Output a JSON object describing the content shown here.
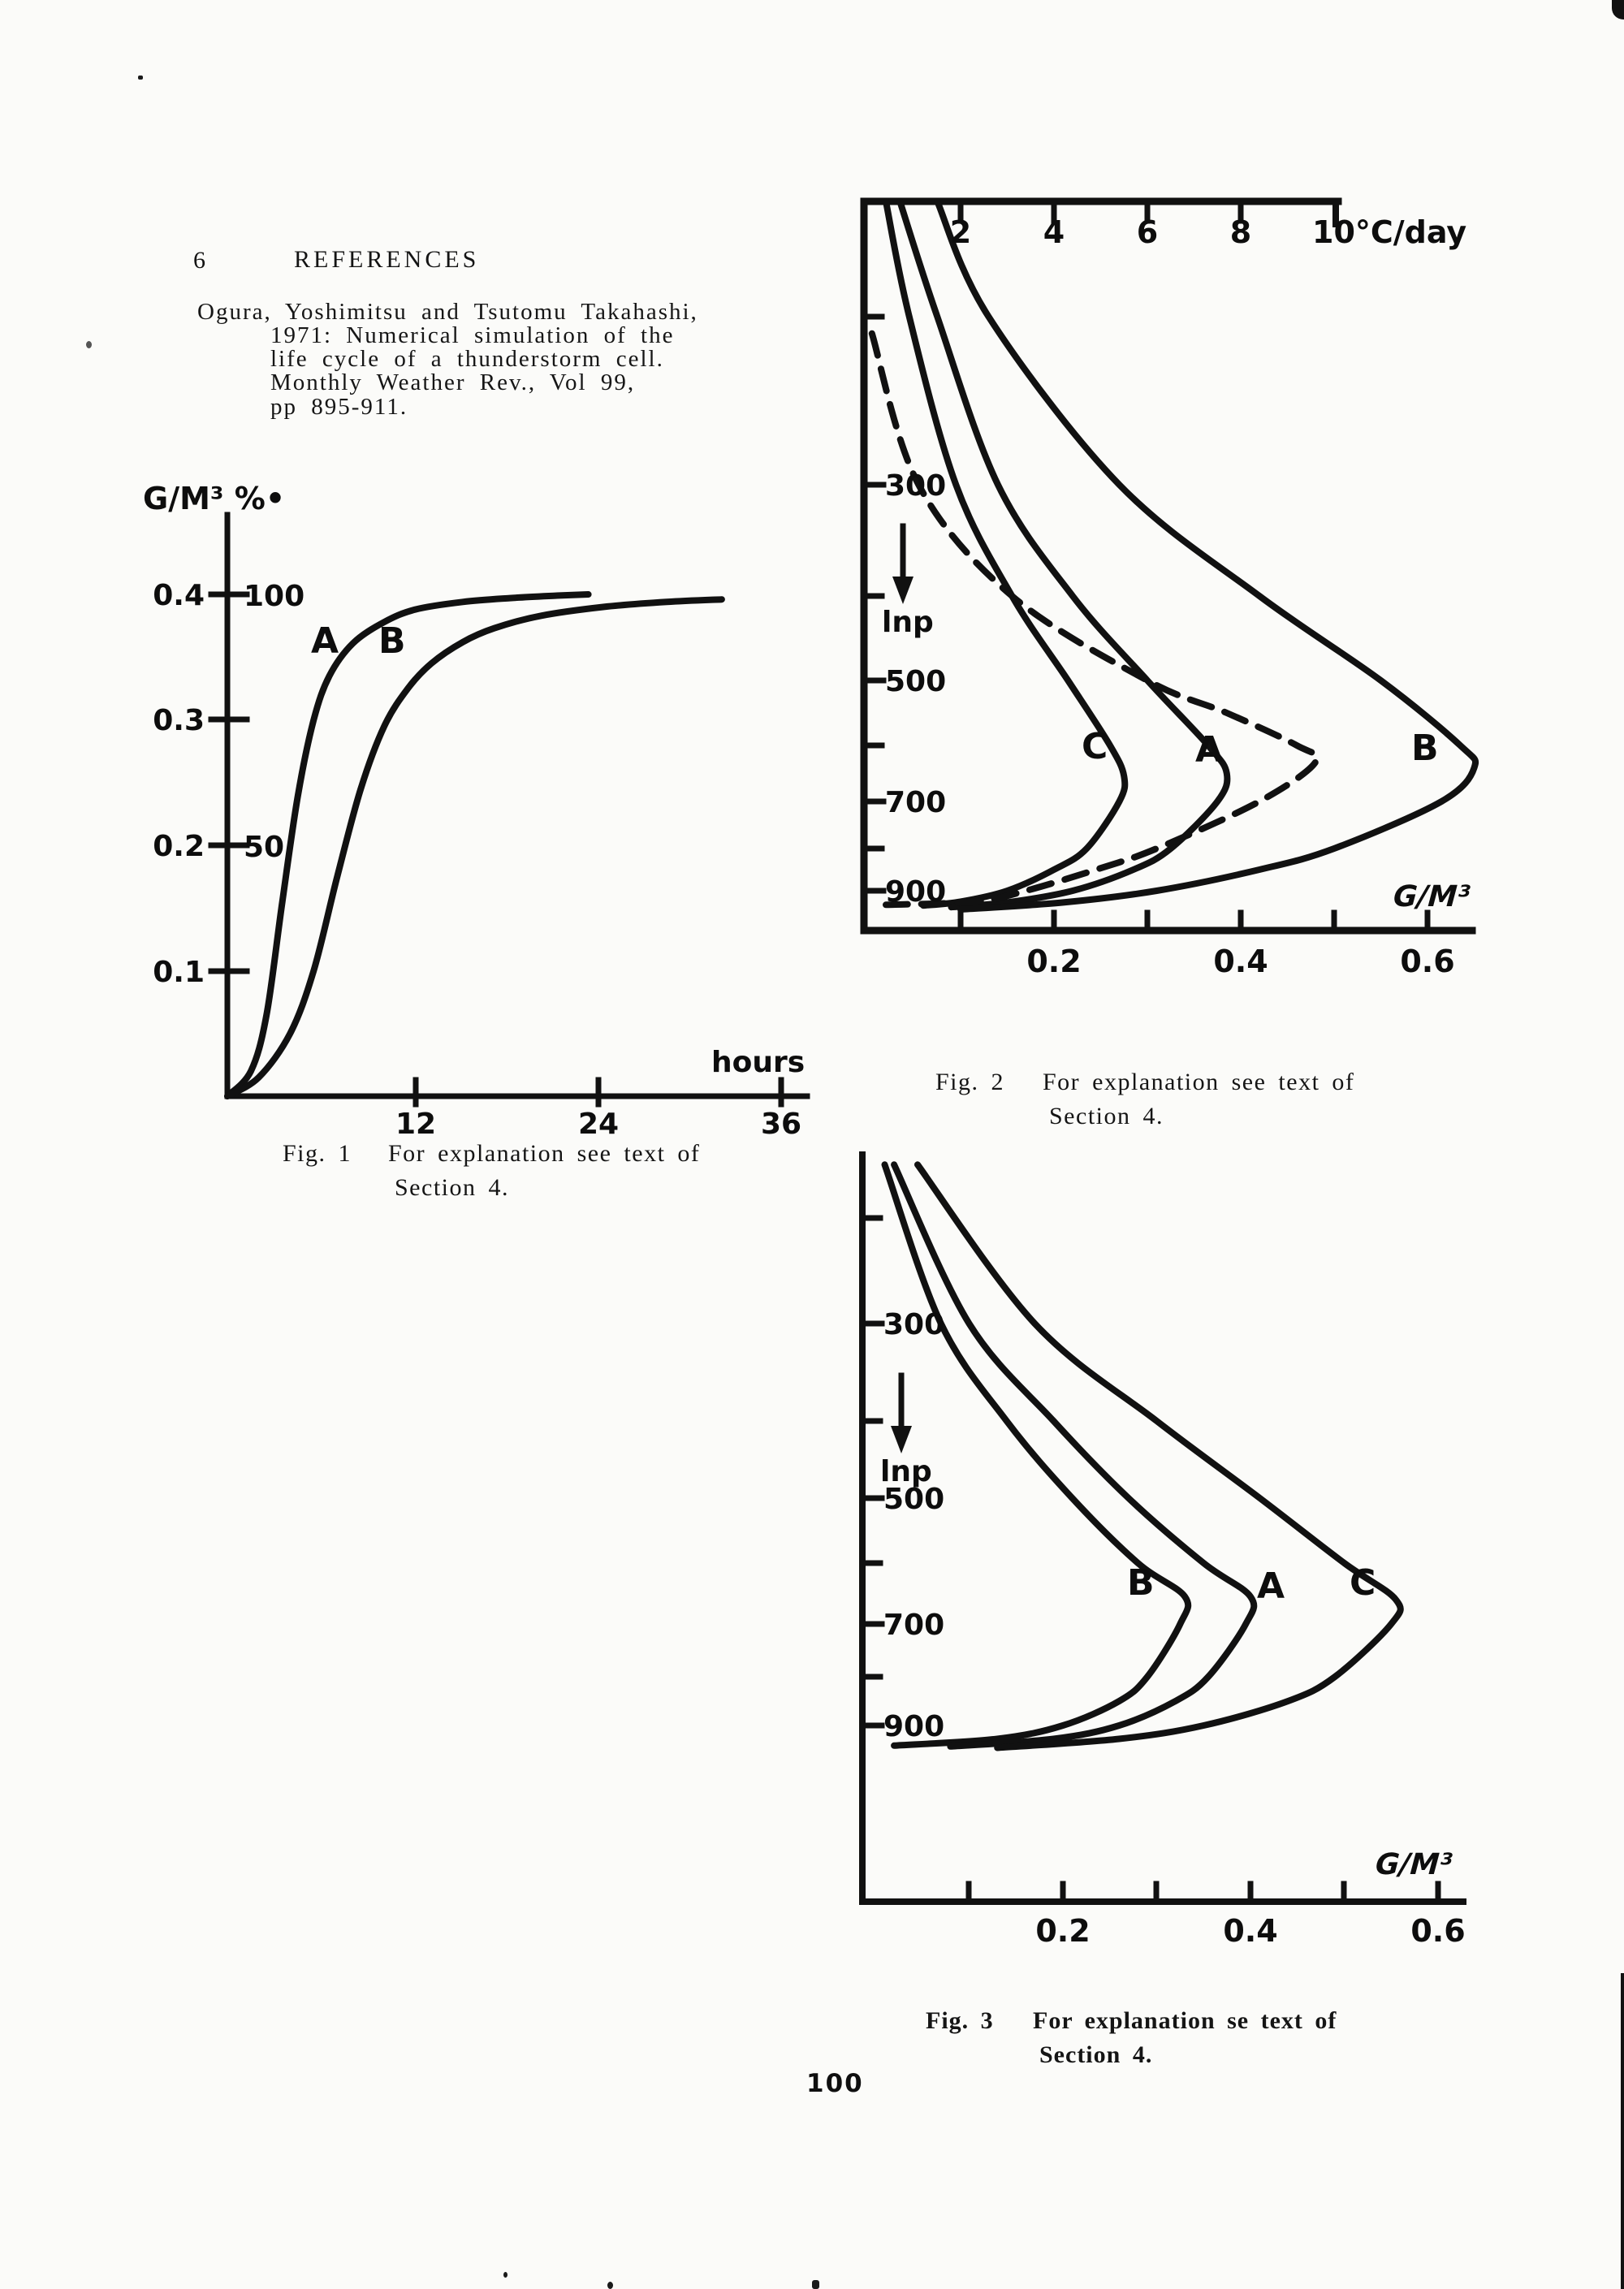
{
  "page": {
    "number_label": "100"
  },
  "header": {
    "section_number": "6",
    "title": "REFERENCES"
  },
  "reference": {
    "lines": [
      "Ogura, Yoshimitsu and Tsutomu Takahashi,",
      "1971:  Numerical simulation of the",
      "life cycle of a thunderstorm cell.",
      "Monthly Weather Rev., Vol 99,",
      "pp 895-911."
    ]
  },
  "figure1": {
    "ylabel": "G/M³ %•",
    "y_ticks": [
      "0.4",
      "0.3",
      "0.2",
      "0.1"
    ],
    "y_right_ticks": [
      "100",
      "50"
    ],
    "x_ticks": [
      "12",
      "24",
      "36"
    ],
    "xlabel": "hours",
    "curve_labels": {
      "a": "A",
      "b": "B"
    },
    "caption": {
      "label": "Fig. 1",
      "line1": "For explanation see text of",
      "line2": "Section 4."
    }
  },
  "figure2": {
    "top_ticks": [
      "2",
      "4",
      "6",
      "8"
    ],
    "top_axis_label": "10°C/day",
    "y_ticks": [
      "300",
      "500",
      "700",
      "900"
    ],
    "y_axis_label": "lnp",
    "x_ticks": [
      "0.2",
      "0.4",
      "0.6"
    ],
    "xlabel": "G/M³",
    "curve_labels": {
      "c": "C",
      "a": "A",
      "b": "B"
    },
    "caption": {
      "label": "Fig. 2",
      "line1": "For explanation see text of",
      "line2": "Section 4."
    }
  },
  "figure3": {
    "y_ticks": [
      "300",
      "500",
      "700",
      "900"
    ],
    "y_axis_label": "lnp",
    "x_ticks": [
      "0.2",
      "0.4",
      "0.6"
    ],
    "xlabel": "G/M³",
    "curve_labels": {
      "b": "B",
      "a": "A",
      "c": "C"
    },
    "caption": {
      "label": "Fig. 3",
      "line1": "For explanation se text of",
      "line2": "Section 4."
    }
  },
  "chart_data": [
    {
      "id": "fig1",
      "type": "line",
      "title": "Fig. 1",
      "xlabel": "hours",
      "ylabel": "G/M³ %",
      "xlim": [
        0,
        37
      ],
      "ylim": [
        0,
        0.45
      ],
      "x_tick_values": [
        12,
        24,
        36
      ],
      "y_tick_values": [
        0.1,
        0.2,
        0.3,
        0.4
      ],
      "y_right_tick_values": {
        "0.2": 50,
        "0.4": 100
      },
      "grid": false,
      "calibration": {
        "x0": 280,
        "x_scale": 19.33,
        "y0": 1350,
        "y_scale": 1545
      },
      "series": [
        {
          "name": "A",
          "path_name": "fig1-curve-a",
          "points": [
            [
              0,
              0
            ],
            [
              1.5,
              0.02
            ],
            [
              2.5,
              0.065
            ],
            [
              3.5,
              0.155
            ],
            [
              4.5,
              0.24
            ],
            [
              5.5,
              0.3
            ],
            [
              6.5,
              0.335
            ],
            [
              8,
              0.361
            ],
            [
              10,
              0.378
            ],
            [
              12,
              0.388
            ],
            [
              15,
              0.394
            ],
            [
              18,
              0.397
            ],
            [
              21,
              0.399
            ],
            [
              23,
              0.4
            ]
          ]
        },
        {
          "name": "B",
          "path_name": "fig1-curve-b",
          "points": [
            [
              0,
              0
            ],
            [
              2,
              0.015
            ],
            [
              4,
              0.05
            ],
            [
              5.5,
              0.1
            ],
            [
              7,
              0.175
            ],
            [
              8.5,
              0.245
            ],
            [
              10,
              0.295
            ],
            [
              11.5,
              0.325
            ],
            [
              13,
              0.345
            ],
            [
              15,
              0.362
            ],
            [
              17,
              0.373
            ],
            [
              20,
              0.383
            ],
            [
              24,
              0.39
            ],
            [
              28,
              0.394
            ],
            [
              31.5,
              0.396
            ]
          ]
        }
      ]
    },
    {
      "id": "fig2",
      "type": "line",
      "title": "Fig. 2",
      "xlabel": "G/M³",
      "top_axis_label": "°C/day",
      "top_tick_values": [
        2,
        4,
        6,
        8,
        10
      ],
      "ylabel": "lnp (pressure, hPa, log scale, increasing downward)",
      "xlim": [
        0,
        0.65
      ],
      "x_tick_values": [
        0.2,
        0.4,
        0.6
      ],
      "y_tick_values": [
        300,
        400,
        500,
        600,
        700,
        800,
        900
      ],
      "y_labeled_ticks": [
        300,
        500,
        700,
        900
      ],
      "grid": false,
      "calibration": {
        "x0": 1068,
        "x_scale": 1150,
        "y_anchors": [
          [
            150,
            248
          ],
          [
            200,
            390
          ],
          [
            300,
            597
          ],
          [
            400,
            734
          ],
          [
            500,
            838
          ],
          [
            600,
            918
          ],
          [
            700,
            987
          ],
          [
            800,
            1045
          ],
          [
            900,
            1097
          ],
          [
            950,
            1121
          ]
        ]
      },
      "series": [
        {
          "name": "C",
          "path_name": "fig2-curve-c",
          "points": [
            [
              0.02,
              150
            ],
            [
              0.045,
              200
            ],
            [
              0.095,
              300
            ],
            [
              0.155,
              400
            ],
            [
              0.215,
              500
            ],
            [
              0.26,
              600
            ],
            [
              0.275,
              655
            ],
            [
              0.27,
              700
            ],
            [
              0.235,
              800
            ],
            [
              0.2,
              850
            ],
            [
              0.15,
              900
            ],
            [
              0.1,
              928
            ],
            [
              0.06,
              938
            ]
          ]
        },
        {
          "name": "A",
          "path_name": "fig2-curve-a",
          "points": [
            [
              0.035,
              150
            ],
            [
              0.075,
              200
            ],
            [
              0.14,
              300
            ],
            [
              0.22,
              400
            ],
            [
              0.3,
              500
            ],
            [
              0.365,
              600
            ],
            [
              0.385,
              650
            ],
            [
              0.375,
              700
            ],
            [
              0.325,
              800
            ],
            [
              0.285,
              850
            ],
            [
              0.22,
              900
            ],
            [
              0.15,
              930
            ],
            [
              0.09,
              942
            ]
          ]
        },
        {
          "name": "B",
          "path_name": "fig2-curve-b",
          "points": [
            [
              0.075,
              150
            ],
            [
              0.13,
              200
            ],
            [
              0.27,
              300
            ],
            [
              0.42,
              400
            ],
            [
              0.55,
              500
            ],
            [
              0.635,
              600
            ],
            [
              0.65,
              640
            ],
            [
              0.615,
              700
            ],
            [
              0.5,
              800
            ],
            [
              0.42,
              850
            ],
            [
              0.31,
              900
            ],
            [
              0.21,
              930
            ],
            [
              0.1,
              948
            ]
          ]
        },
        {
          "name": "dashed",
          "path_name": "fig2-curve-dashed",
          "dash": "28 17",
          "points": [
            [
              0.005,
              210
            ],
            [
              0.055,
              300
            ],
            [
              0.155,
              400
            ],
            [
              0.3,
              500
            ],
            [
              0.385,
              550
            ],
            [
              0.46,
              600
            ],
            [
              0.48,
              630
            ],
            [
              0.42,
              700
            ],
            [
              0.31,
              800
            ],
            [
              0.245,
              850
            ],
            [
              0.17,
              900
            ],
            [
              0.115,
              928
            ],
            [
              0.02,
              936
            ]
          ]
        }
      ]
    },
    {
      "id": "fig3",
      "type": "line",
      "title": "Fig. 3",
      "xlabel": "G/M³",
      "ylabel": "lnp (pressure, hPa, log scale, increasing downward)",
      "xlim": [
        0,
        0.65
      ],
      "x_tick_values": [
        0.2,
        0.4,
        0.6
      ],
      "y_tick_values": [
        300,
        400,
        500,
        600,
        700,
        800,
        900
      ],
      "y_labeled_ticks": [
        300,
        500,
        700,
        900
      ],
      "grid": false,
      "calibration": {
        "x0": 1078,
        "x_scale": 1155,
        "y_anchors": [
          [
            180,
            1425
          ],
          [
            200,
            1462
          ],
          [
            300,
            1630
          ],
          [
            400,
            1750
          ],
          [
            500,
            1845
          ],
          [
            600,
            1925
          ],
          [
            700,
            2000
          ],
          [
            800,
            2065
          ],
          [
            900,
            2125
          ],
          [
            960,
            2158
          ]
        ]
      },
      "series": [
        {
          "name": "B",
          "path_name": "fig3-curve-b",
          "points": [
            [
              0.01,
              185
            ],
            [
              0.07,
              300
            ],
            [
              0.14,
              400
            ],
            [
              0.21,
              500
            ],
            [
              0.28,
              600
            ],
            [
              0.33,
              655
            ],
            [
              0.325,
              700
            ],
            [
              0.29,
              800
            ],
            [
              0.26,
              850
            ],
            [
              0.2,
              900
            ],
            [
              0.13,
              930
            ],
            [
              0.02,
              945
            ]
          ]
        },
        {
          "name": "A",
          "path_name": "fig3-curve-a",
          "points": [
            [
              0.02,
              185
            ],
            [
              0.1,
              300
            ],
            [
              0.19,
              400
            ],
            [
              0.27,
              500
            ],
            [
              0.35,
              600
            ],
            [
              0.4,
              655
            ],
            [
              0.395,
              700
            ],
            [
              0.355,
              800
            ],
            [
              0.32,
              850
            ],
            [
              0.26,
              900
            ],
            [
              0.19,
              930
            ],
            [
              0.08,
              947
            ]
          ]
        },
        {
          "name": "C",
          "path_name": "fig3-curve-c",
          "points": [
            [
              0.045,
              185
            ],
            [
              0.17,
              300
            ],
            [
              0.3,
              400
            ],
            [
              0.41,
              500
            ],
            [
              0.5,
              600
            ],
            [
              0.555,
              660
            ],
            [
              0.55,
              700
            ],
            [
              0.49,
              800
            ],
            [
              0.44,
              850
            ],
            [
              0.35,
              900
            ],
            [
              0.26,
              930
            ],
            [
              0.13,
              950
            ]
          ]
        }
      ]
    }
  ]
}
